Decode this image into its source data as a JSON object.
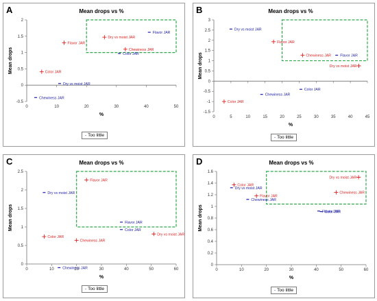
{
  "colors": {
    "red": "#dc1e1e",
    "blue": "#1a1aa8",
    "green": "#2ea84a",
    "axis": "#707070"
  },
  "chart_data": [
    {
      "panel": "A",
      "type": "scatter",
      "title": "Mean drops vs %",
      "xlabel": "%",
      "ylabel": "Mean drops",
      "xlim": [
        0,
        50
      ],
      "ylim": [
        -0.5,
        2
      ],
      "xticks": [
        0,
        10,
        20,
        30,
        40,
        50
      ],
      "yticks": [
        -0.5,
        0,
        0.5,
        1,
        1.5,
        2
      ],
      "ytick_labels": [
        "-0.5",
        "0",
        "0.5",
        "1",
        "1.5",
        "2"
      ],
      "region": {
        "x": [
          20,
          50
        ],
        "y": [
          1,
          2
        ]
      },
      "legend": "Too little",
      "points": [
        {
          "label": "Flavor JAR",
          "x": 41,
          "y": 1.62,
          "marker": "dash",
          "color": "blue"
        },
        {
          "label": "Dry vs moist JAR",
          "x": 26,
          "y": 1.47,
          "marker": "plus",
          "color": "red"
        },
        {
          "label": "Flavor JAR",
          "x": 12.5,
          "y": 1.3,
          "marker": "plus",
          "color": "red"
        },
        {
          "label": "Chewiness JAR",
          "x": 33,
          "y": 1.1,
          "marker": "plus",
          "color": "red"
        },
        {
          "label": "Color JAR",
          "x": 31,
          "y": 0.97,
          "marker": "dash",
          "color": "blue"
        },
        {
          "label": "Color JAR",
          "x": 5,
          "y": 0.41,
          "marker": "plus",
          "color": "red"
        },
        {
          "label": "Dry vs moist JAR",
          "x": 11,
          "y": 0.05,
          "marker": "dash",
          "color": "blue"
        },
        {
          "label": "Chewiness JAR",
          "x": 3,
          "y": -0.38,
          "marker": "dash",
          "color": "blue"
        }
      ]
    },
    {
      "panel": "B",
      "type": "scatter",
      "title": "Mean drops vs %",
      "xlabel": "%",
      "ylabel": "Mean drops",
      "xlim": [
        0,
        45
      ],
      "ylim": [
        -1.5,
        3
      ],
      "xticks": [
        0,
        5,
        10,
        15,
        20,
        25,
        30,
        35,
        40,
        45
      ],
      "yticks": [
        -1.5,
        -1,
        -0.5,
        0,
        0.5,
        1,
        1.5,
        2,
        2.5,
        3
      ],
      "ytick_labels": [
        "-1.5",
        "-1",
        "-0.5",
        "0",
        "0.5",
        "1",
        "1.5",
        "2",
        "2.5",
        "3"
      ],
      "region": {
        "x": [
          20,
          45
        ],
        "y": [
          1,
          3
        ]
      },
      "legend": "Too little",
      "points": [
        {
          "label": "Dry vs moist JAR",
          "x": 5,
          "y": 2.55,
          "marker": "dash",
          "color": "blue"
        },
        {
          "label": "Flavor JAR",
          "x": 17.5,
          "y": 1.93,
          "marker": "plus",
          "color": "red"
        },
        {
          "label": "Chewiness JAR",
          "x": 26,
          "y": 1.27,
          "marker": "plus",
          "color": "red"
        },
        {
          "label": "Flavor JAR",
          "x": 36,
          "y": 1.27,
          "marker": "dash",
          "color": "blue"
        },
        {
          "label": "Dry vs moist JAR",
          "x": 42.5,
          "y": 0.75,
          "marker": "plus",
          "color": "red"
        },
        {
          "label": "Color JAR",
          "x": 25.5,
          "y": -0.4,
          "marker": "dash",
          "color": "blue"
        },
        {
          "label": "Chewiness JAR",
          "x": 14,
          "y": -0.65,
          "marker": "dash",
          "color": "blue"
        },
        {
          "label": "Color JAR",
          "x": 3,
          "y": -1,
          "marker": "plus",
          "color": "red"
        }
      ]
    },
    {
      "panel": "C",
      "type": "scatter",
      "title": "Mean drops vs %",
      "xlabel": "%",
      "ylabel": "Mean drops",
      "xlim": [
        0,
        60
      ],
      "ylim": [
        0,
        2.5
      ],
      "xticks": [
        0,
        10,
        20,
        30,
        40,
        50,
        60
      ],
      "yticks": [
        0,
        0.5,
        1,
        1.5,
        2,
        2.5
      ],
      "ytick_labels": [
        "0",
        "0.5",
        "1",
        "1.5",
        "2",
        "2.5"
      ],
      "region": {
        "x": [
          20,
          60
        ],
        "y": [
          1,
          2.5
        ]
      },
      "legend": "Too little",
      "points": [
        {
          "label": "Flavor JAR",
          "x": 24,
          "y": 2.27,
          "marker": "plus",
          "color": "red"
        },
        {
          "label": "Dry vs moist JAR",
          "x": 7,
          "y": 1.93,
          "marker": "dash",
          "color": "blue"
        },
        {
          "label": "Flavor JAR",
          "x": 38,
          "y": 1.13,
          "marker": "dash",
          "color": "blue"
        },
        {
          "label": "Color JAR",
          "x": 38,
          "y": 0.93,
          "marker": "dash",
          "color": "blue"
        },
        {
          "label": "Dry vs moist JAR",
          "x": 51,
          "y": 0.81,
          "marker": "plus",
          "color": "red"
        },
        {
          "label": "Color JAR",
          "x": 7,
          "y": 0.74,
          "marker": "plus",
          "color": "red"
        },
        {
          "label": "Chewiness JAR",
          "x": 20,
          "y": 0.64,
          "marker": "plus",
          "color": "red"
        },
        {
          "label": "Chewiness JAR",
          "x": 13,
          "y": -0.1,
          "marker": "dash",
          "color": "blue"
        }
      ]
    },
    {
      "panel": "D",
      "type": "scatter",
      "title": "Mean drops vs %",
      "xlabel": "%",
      "ylabel": "Mean drops",
      "xlim": [
        0,
        60
      ],
      "ylim": [
        0,
        1.6
      ],
      "xticks": [
        0,
        10,
        20,
        30,
        40,
        50,
        60
      ],
      "yticks": [
        0,
        0.2,
        0.4,
        0.6,
        0.8,
        1,
        1.2,
        1.4,
        1.6
      ],
      "ytick_labels": [
        "0",
        "0.2",
        "0.4",
        "0.6",
        "0.8",
        "1",
        "1.2",
        "1.4",
        "1.6"
      ],
      "region": {
        "x": [
          20,
          60
        ],
        "y": [
          1.04,
          1.6
        ]
      },
      "legend": "Too little",
      "points": [
        {
          "label": "Dry vs moist JAR",
          "x": 57,
          "y": 1.5,
          "marker": "plus",
          "color": "red"
        },
        {
          "label": "Color JAR",
          "x": 7,
          "y": 1.37,
          "marker": "plus",
          "color": "red"
        },
        {
          "label": "Dry vs moist JAR",
          "x": 6,
          "y": 1.32,
          "marker": "dash",
          "color": "blue"
        },
        {
          "label": "Chewiness JAR",
          "x": 48,
          "y": 1.24,
          "marker": "plus",
          "color": "red"
        },
        {
          "label": "Flavor JAR",
          "x": 16,
          "y": 1.18,
          "marker": "plus",
          "color": "red"
        },
        {
          "label": "Chewiness JAR",
          "x": 12.5,
          "y": 1.12,
          "marker": "dash",
          "color": "blue"
        },
        {
          "label": "Flavor JAR",
          "x": 41,
          "y": 0.92,
          "marker": "dash",
          "color": "blue"
        },
        {
          "label": "Color JAR",
          "x": 42,
          "y": 0.91,
          "marker": "dash",
          "color": "blue"
        }
      ]
    }
  ]
}
